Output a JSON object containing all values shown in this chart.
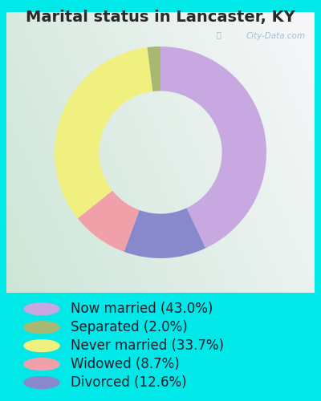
{
  "title": "Marital status in Lancaster, KY",
  "slices": [
    43.0,
    12.6,
    8.7,
    33.7,
    2.0
  ],
  "colors": [
    "#c8a8e0",
    "#8888cc",
    "#f0a0a8",
    "#f0f080",
    "#a8b870"
  ],
  "legend_labels": [
    "Now married (43.0%)",
    "Separated (2.0%)",
    "Never married (33.7%)",
    "Widowed (8.7%)",
    "Divorced (12.6%)"
  ],
  "legend_colors": [
    "#c8a8e0",
    "#a8b870",
    "#f0f080",
    "#f0a0a8",
    "#8888cc"
  ],
  "background_color": "#00e8e8",
  "chart_bg_colors": [
    "#e8f4ec",
    "#d0e8d8",
    "#c8e8d0"
  ],
  "title_fontsize": 14,
  "legend_fontsize": 12,
  "watermark": "City-Data.com"
}
